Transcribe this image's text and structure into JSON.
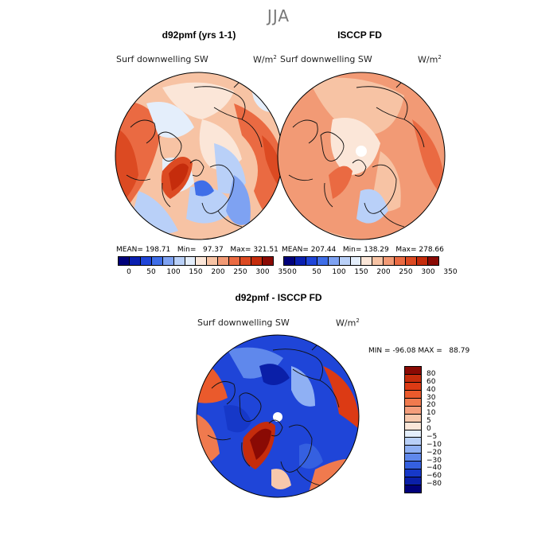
{
  "figure": {
    "season": "JJA"
  },
  "left_panel": {
    "title": "d92pmf (yrs 1-1)",
    "variable": "Surf downwelling SW",
    "units": "W/m",
    "units_exp": "2",
    "mean_label": "MEAN=",
    "mean": "198.71",
    "min_label": "Min=",
    "min": "97.37",
    "max_label": "Max=",
    "max": "321.51"
  },
  "right_panel": {
    "title": "ISCCP FD",
    "variable": "Surf downwelling SW",
    "units": "W/m",
    "units_exp": "2",
    "mean_label": "MEAN=",
    "mean": "207.44",
    "min_label": "Min=",
    "min": "138.29",
    "max_label": "Max=",
    "max": "278.66"
  },
  "diff_panel": {
    "title": "d92pmf - ISCCP FD",
    "variable": "Surf downwelling SW",
    "units": "W/m",
    "units_exp": "2",
    "min_label": "MIN =",
    "min": "-96.08",
    "max_label": "MAX =",
    "max": "88.79"
  },
  "colorbar_abs": {
    "ticks": [
      "0",
      "50",
      "100",
      "150",
      "200",
      "250",
      "300",
      "350"
    ],
    "colors": [
      "#00007a",
      "#0a1fb0",
      "#1f45d8",
      "#3f6ee8",
      "#7ea2f2",
      "#b9d0f8",
      "#e4eefb",
      "#fbe6d8",
      "#f7c3a4",
      "#f29a75",
      "#ea6a42",
      "#dc4a22",
      "#c52c0c",
      "#8a0a04"
    ]
  },
  "colorbar_diff": {
    "ticks": [
      "80",
      "60",
      "40",
      "30",
      "20",
      "10",
      "5",
      "0",
      "-5",
      "-10",
      "-20",
      "-30",
      "-40",
      "-60",
      "-80"
    ],
    "colors": [
      "#8a0a04",
      "#c52c0c",
      "#dc3a14",
      "#ea5a2c",
      "#f07a4e",
      "#f49e7c",
      "#f7c8ac",
      "#fbe6d8",
      "#e4eefb",
      "#b9d0f8",
      "#8fb0f4",
      "#5f88ec",
      "#3560e0",
      "#1638c8",
      "#0a1fa8",
      "#00007a"
    ]
  },
  "chart_data": [
    {
      "type": "heatmap",
      "title": "d92pmf (yrs 1-1)",
      "subtitle": "Surf downwelling SW",
      "units": "W/m2",
      "projection": "north polar stereographic",
      "mean": 198.71,
      "min": 97.37,
      "max": 321.51,
      "colorbar_ticks": [
        0,
        50,
        100,
        150,
        200,
        250,
        300,
        350
      ]
    },
    {
      "type": "heatmap",
      "title": "ISCCP FD",
      "subtitle": "Surf downwelling SW",
      "units": "W/m2",
      "projection": "north polar stereographic",
      "mean": 207.44,
      "min": 138.29,
      "max": 278.66,
      "colorbar_ticks": [
        0,
        50,
        100,
        150,
        200,
        250,
        300,
        350
      ]
    },
    {
      "type": "heatmap",
      "title": "d92pmf - ISCCP FD",
      "subtitle": "Surf downwelling SW",
      "units": "W/m2",
      "projection": "north polar stereographic",
      "min": -96.08,
      "max": 88.79,
      "colorbar_ticks": [
        80,
        60,
        40,
        30,
        20,
        10,
        5,
        0,
        -5,
        -10,
        -20,
        -30,
        -40,
        -60,
        -80
      ]
    }
  ]
}
